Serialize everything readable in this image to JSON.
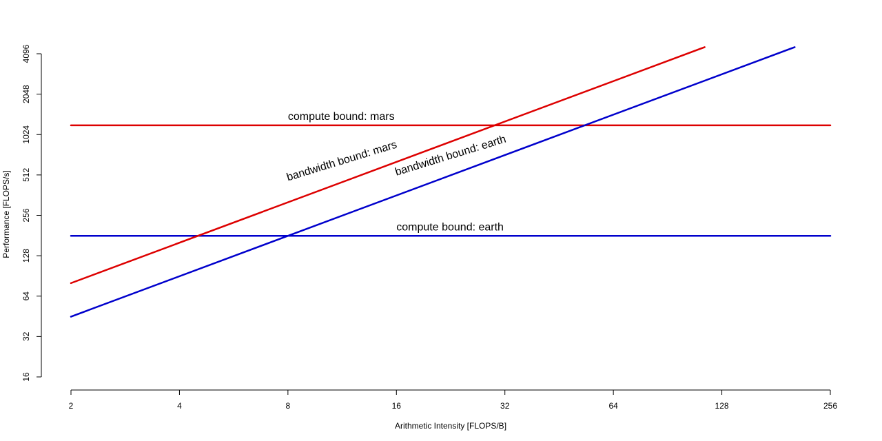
{
  "chart_data": {
    "type": "line",
    "xlabel": "Arithmetic Intensity [FLOPS/B]",
    "ylabel": "Performance [FLOPS/s]",
    "x_scale": "log2",
    "y_scale": "log2",
    "xlim": [
      2,
      256
    ],
    "ylim": [
      16,
      4096
    ],
    "x_ticks": [
      "2",
      "4",
      "8",
      "16",
      "32",
      "64",
      "128",
      "256"
    ],
    "y_ticks": [
      "16",
      "32",
      "64",
      "128",
      "256",
      "512",
      "1024",
      "2048",
      "4096"
    ],
    "grid": false,
    "legend": "none",
    "series": [
      {
        "color": "#dd0000",
        "kind": "horizontal",
        "y": 1200,
        "x_range": [
          2,
          256
        ]
      },
      {
        "color": "#0000cc",
        "kind": "horizontal",
        "y": 180,
        "x_range": [
          2,
          256
        ]
      },
      {
        "color": "#dd0000",
        "kind": "diagonal",
        "points": [
          [
            2,
            80
          ],
          [
            128,
            5120
          ]
        ]
      },
      {
        "color": "#0000cc",
        "kind": "diagonal",
        "points": [
          [
            2,
            45
          ],
          [
            256,
            5760
          ]
        ]
      }
    ],
    "annotations": [
      {
        "text": "compute bound: mars",
        "x": 8,
        "y": 1200,
        "angle": 0
      },
      {
        "text": "compute bound: earth",
        "x": 16,
        "y": 180,
        "angle": 0
      },
      {
        "text": "bandwidth bound: mars",
        "x": 8,
        "y": 420,
        "angle": -17
      },
      {
        "text": "bandwidth bound: earth",
        "x": 16,
        "y": 460,
        "angle": -17
      }
    ]
  }
}
